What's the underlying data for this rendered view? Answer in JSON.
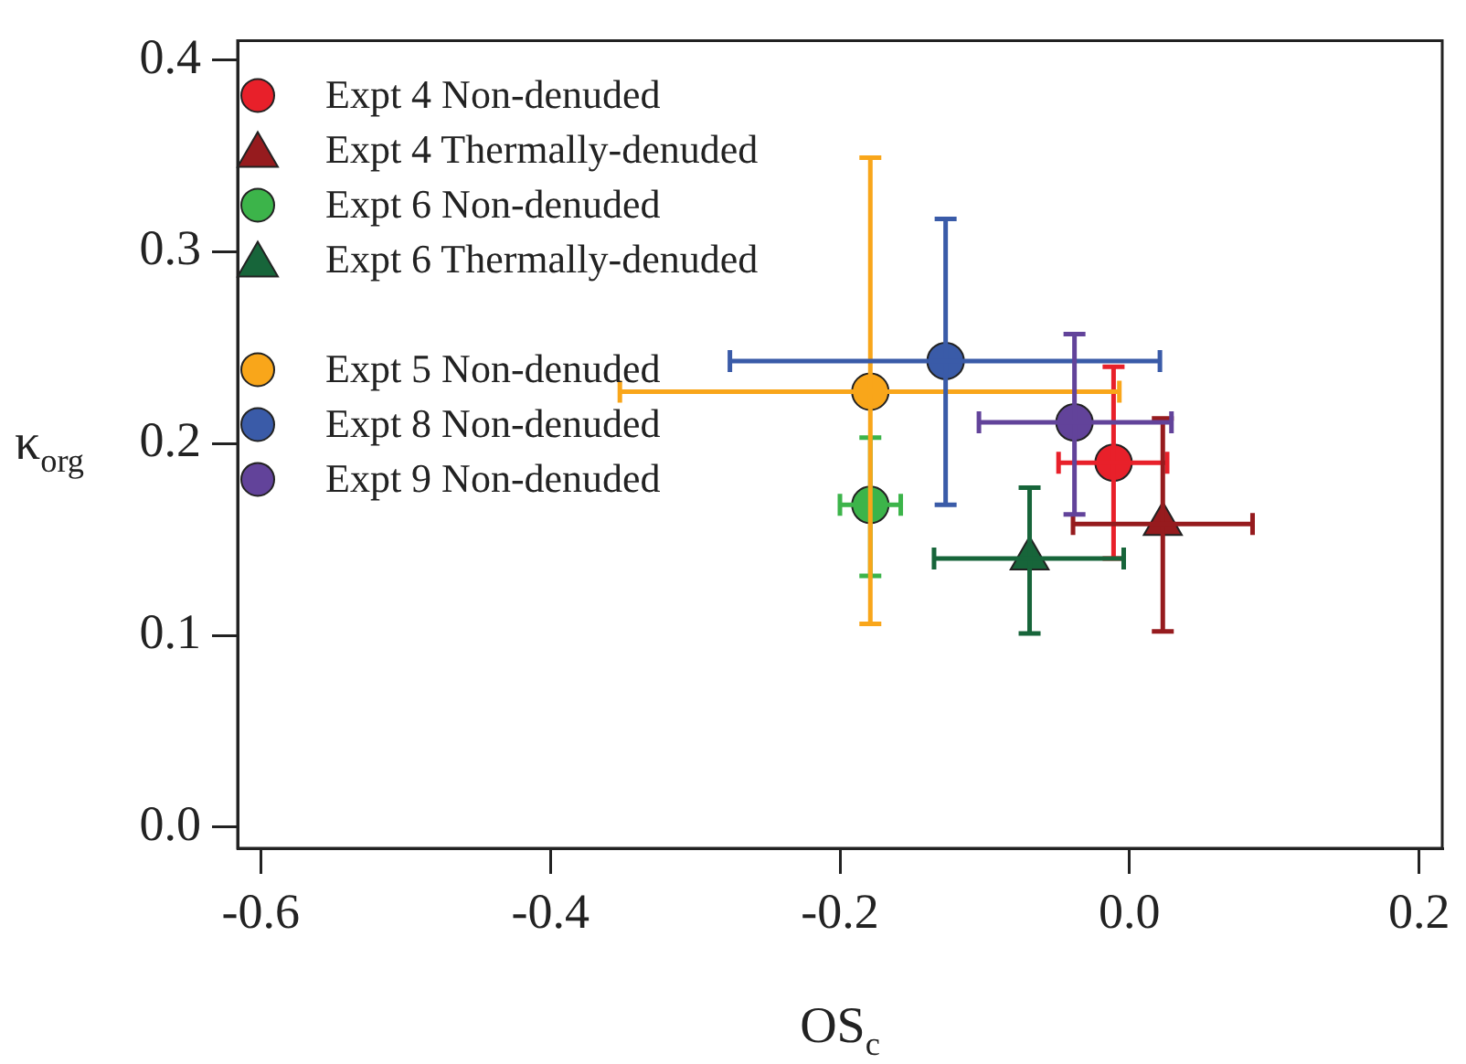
{
  "chart_data": {
    "type": "scatter",
    "xlabel": "OS$_{c}$",
    "ylabel": "κ$_{org}$",
    "xlim": [
      -0.616,
      0.216
    ],
    "ylim": [
      -0.011,
      0.41
    ],
    "xticks": [
      -0.6,
      -0.4,
      -0.2,
      {
        "value": 0,
        "label": "0.0"
      },
      0.2
    ],
    "yticks": [
      {
        "value": 0,
        "label": "0.0"
      },
      0.1,
      0.2,
      0.3,
      0.4
    ],
    "grid": false,
    "legend": "top left",
    "series": [
      {
        "name": "Expt 4 Non-denuded",
        "color": "#e8202a",
        "marker": "circle",
        "x": [
          -0.011
        ],
        "values": [
          0.19
        ],
        "errors": [
          [
            0.14,
            0.24
          ]
        ],
        "xerrors": [
          [
            -0.049,
            0.026
          ]
        ]
      },
      {
        "name": "Expt 4 Thermally-denuded",
        "color": "#961b1e",
        "marker": "triangle",
        "x": [
          0.023
        ],
        "values": [
          0.158
        ],
        "errors": [
          [
            0.102,
            0.213
          ]
        ],
        "xerrors": [
          [
            -0.039,
            0.085
          ]
        ]
      },
      {
        "name": "Expt 6 Non-denuded",
        "color": "#3cb44a",
        "marker": "circle",
        "x": [
          -0.179
        ],
        "values": [
          0.168
        ],
        "errors": [
          [
            0.131,
            0.203
          ]
        ],
        "xerrors": [
          [
            -0.2,
            -0.158
          ]
        ]
      },
      {
        "name": "Expt 6 Thermally-denuded",
        "color": "#17653a",
        "marker": "triangle",
        "x": [
          -0.069
        ],
        "values": [
          0.14
        ],
        "errors": [
          [
            0.101,
            0.177
          ]
        ],
        "xerrors": [
          [
            -0.135,
            -0.004
          ]
        ]
      },
      {
        "name": "Expt 5 Non-denuded",
        "color": "#f9a61a",
        "marker": "circle",
        "x": [
          -0.179
        ],
        "values": [
          0.227
        ],
        "errors": [
          [
            0.106,
            0.349
          ]
        ],
        "xerrors": [
          [
            -0.352,
            -0.007
          ]
        ]
      },
      {
        "name": "Expt 8 Non-denuded",
        "color": "#3a5ba8",
        "marker": "circle",
        "x": [
          -0.127
        ],
        "values": [
          0.243
        ],
        "errors": [
          [
            0.168,
            0.317
          ]
        ],
        "xerrors": [
          [
            -0.276,
            0.021
          ]
        ]
      },
      {
        "name": "Expt 9 Non-denuded",
        "color": "#62439a",
        "marker": "circle",
        "x": [
          -0.038
        ],
        "values": [
          0.211
        ],
        "errors": [
          [
            0.163,
            0.257
          ]
        ],
        "xerrors": [
          [
            -0.104,
            0.029
          ]
        ]
      }
    ]
  }
}
